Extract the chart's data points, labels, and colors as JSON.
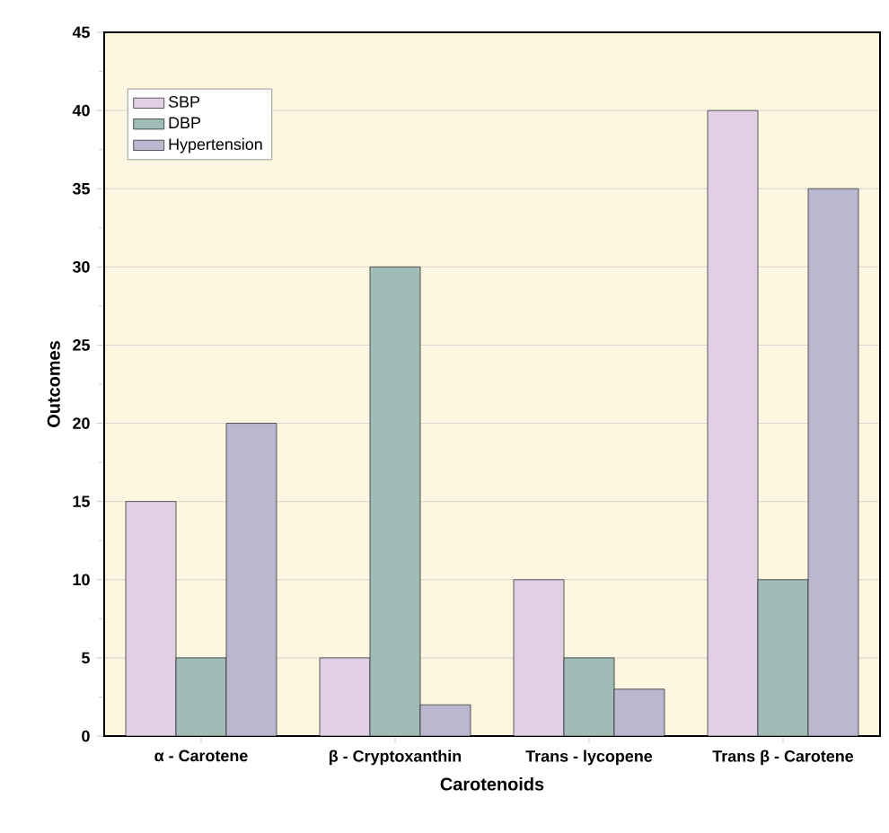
{
  "chart_data": {
    "type": "bar",
    "xlabel": "Carotenoids",
    "ylabel": "Outcomes",
    "categories": [
      "α - Carotene",
      "β - Cryptoxanthin",
      "Trans - lycopene",
      "Trans β - Carotene"
    ],
    "series": [
      {
        "name": "SBP",
        "color": "#e2cfe6",
        "values": [
          15,
          5,
          10,
          40
        ]
      },
      {
        "name": "DBP",
        "color": "#9fbcb7",
        "values": [
          5,
          30,
          5,
          10
        ]
      },
      {
        "name": "Hypertension",
        "color": "#b9b8cf",
        "values": [
          20,
          2,
          3,
          35
        ]
      }
    ],
    "ylim": [
      0,
      45
    ],
    "yticks": [
      0,
      5,
      10,
      15,
      20,
      25,
      30,
      35,
      40,
      45
    ],
    "grid": "y",
    "legend": "top left"
  }
}
